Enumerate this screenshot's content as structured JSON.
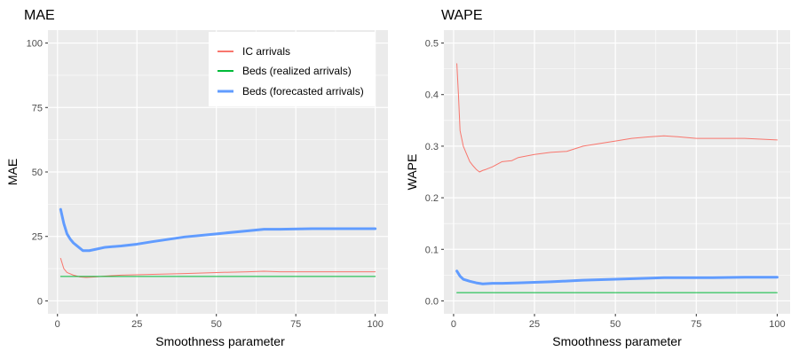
{
  "chart_data": [
    {
      "type": "line",
      "title": "MAE",
      "xlabel": "Smoothness parameter",
      "ylabel": "MAE",
      "xlim": [
        -3,
        104
      ],
      "ylim": [
        -5,
        105
      ],
      "xticks": [
        0,
        25,
        50,
        75,
        100
      ],
      "yticks": [
        0,
        25,
        50,
        75,
        100
      ],
      "legend": "top-right",
      "series": [
        {
          "name": "IC arrivals",
          "color": "#F8766D",
          "width": 1,
          "x": [
            1,
            2,
            3,
            5,
            7,
            9,
            12,
            15,
            20,
            30,
            40,
            50,
            60,
            65,
            70,
            80,
            90,
            100
          ],
          "y": [
            16.5,
            12.5,
            11,
            10,
            9.3,
            9.1,
            9.3,
            9.6,
            10,
            10.3,
            10.6,
            11,
            11.3,
            11.5,
            11.3,
            11.3,
            11.3,
            11.3
          ]
        },
        {
          "name": "Beds (realized arrivals)",
          "color": "#00BA38",
          "width": 1,
          "x": [
            1,
            100
          ],
          "y": [
            9.5,
            9.5
          ]
        },
        {
          "name": "Beds (forecasted arrivals)",
          "color": "#619CFF",
          "width": 3,
          "x": [
            1,
            2,
            3,
            4,
            5,
            6,
            8,
            10,
            12,
            15,
            20,
            25,
            30,
            40,
            50,
            60,
            65,
            70,
            80,
            90,
            100
          ],
          "y": [
            35.5,
            30,
            26,
            24,
            22.5,
            21.5,
            19.5,
            19.5,
            20,
            20.8,
            21.3,
            22,
            23,
            24.8,
            26,
            27.2,
            27.8,
            27.8,
            28,
            28,
            28
          ]
        }
      ]
    },
    {
      "type": "line",
      "title": "WAPE",
      "xlabel": "Smoothness parameter",
      "ylabel": "WAPE",
      "xlim": [
        -3,
        104
      ],
      "ylim": [
        -0.025,
        0.525
      ],
      "xticks": [
        0,
        25,
        50,
        75,
        100
      ],
      "yticks": [
        "0.0",
        "0.1",
        "0.2",
        "0.3",
        "0.4",
        "0.5"
      ],
      "series": [
        {
          "name": "IC arrivals",
          "color": "#F8766D",
          "width": 1,
          "x": [
            1,
            1.5,
            2,
            3,
            4,
            5,
            6,
            7,
            8,
            9,
            10,
            12,
            15,
            18,
            20,
            25,
            30,
            35,
            40,
            45,
            50,
            55,
            60,
            65,
            70,
            75,
            80,
            90,
            100
          ],
          "y": [
            0.46,
            0.4,
            0.33,
            0.3,
            0.285,
            0.27,
            0.262,
            0.255,
            0.25,
            0.253,
            0.255,
            0.26,
            0.27,
            0.272,
            0.278,
            0.284,
            0.288,
            0.29,
            0.3,
            0.305,
            0.31,
            0.315,
            0.318,
            0.32,
            0.318,
            0.315,
            0.315,
            0.315,
            0.312
          ]
        },
        {
          "name": "Beds (realized arrivals)",
          "color": "#00BA38",
          "width": 1,
          "x": [
            1,
            100
          ],
          "y": [
            0.016,
            0.016
          ]
        },
        {
          "name": "Beds (forecasted arrivals)",
          "color": "#619CFF",
          "width": 3,
          "x": [
            1,
            2,
            3,
            5,
            7,
            9,
            12,
            15,
            20,
            25,
            30,
            40,
            50,
            60,
            65,
            70,
            80,
            90,
            100
          ],
          "y": [
            0.058,
            0.048,
            0.042,
            0.038,
            0.035,
            0.033,
            0.034,
            0.034,
            0.035,
            0.036,
            0.037,
            0.04,
            0.042,
            0.044,
            0.045,
            0.045,
            0.045,
            0.046,
            0.046
          ]
        }
      ]
    }
  ]
}
